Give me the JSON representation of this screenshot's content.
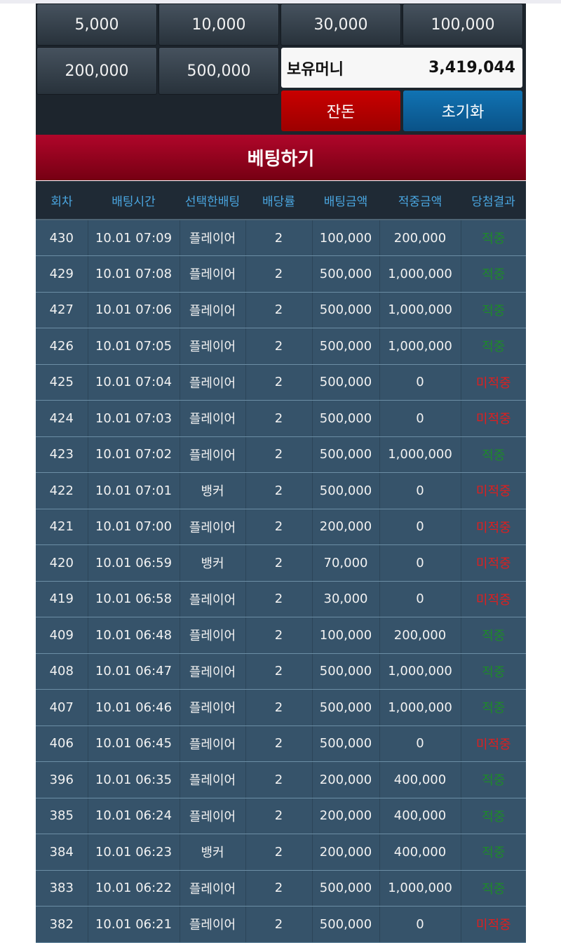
{
  "chips": [
    "5,000",
    "10,000",
    "30,000",
    "100,000",
    "200,000",
    "500,000"
  ],
  "money": {
    "label": "보유머니",
    "value": "3,419,044"
  },
  "buttons": {
    "change": "잔돈",
    "reset": "초기화",
    "bet": "베팅하기"
  },
  "colors": {
    "win": "#1e8a2a",
    "lose": "#e01e1e",
    "header": "#4aa6e0"
  },
  "table": {
    "headers": [
      "회차",
      "배팅시간",
      "선택한배팅",
      "배당률",
      "배팅금액",
      "적중금액",
      "당첨결과"
    ],
    "rows": [
      [
        "430",
        "10.01 07:09",
        "플레이어",
        "2",
        "100,000",
        "200,000",
        "적중"
      ],
      [
        "429",
        "10.01 07:08",
        "플레이어",
        "2",
        "500,000",
        "1,000,000",
        "적중"
      ],
      [
        "427",
        "10.01 07:06",
        "플레이어",
        "2",
        "500,000",
        "1,000,000",
        "적중"
      ],
      [
        "426",
        "10.01 07:05",
        "플레이어",
        "2",
        "500,000",
        "1,000,000",
        "적중"
      ],
      [
        "425",
        "10.01 07:04",
        "플레이어",
        "2",
        "500,000",
        "0",
        "미적중"
      ],
      [
        "424",
        "10.01 07:03",
        "플레이어",
        "2",
        "500,000",
        "0",
        "미적중"
      ],
      [
        "423",
        "10.01 07:02",
        "플레이어",
        "2",
        "500,000",
        "1,000,000",
        "적중"
      ],
      [
        "422",
        "10.01 07:01",
        "뱅커",
        "2",
        "500,000",
        "0",
        "미적중"
      ],
      [
        "421",
        "10.01 07:00",
        "플레이어",
        "2",
        "200,000",
        "0",
        "미적중"
      ],
      [
        "420",
        "10.01 06:59",
        "뱅커",
        "2",
        "70,000",
        "0",
        "미적중"
      ],
      [
        "419",
        "10.01 06:58",
        "플레이어",
        "2",
        "30,000",
        "0",
        "미적중"
      ],
      [
        "409",
        "10.01 06:48",
        "플레이어",
        "2",
        "100,000",
        "200,000",
        "적중"
      ],
      [
        "408",
        "10.01 06:47",
        "플레이어",
        "2",
        "500,000",
        "1,000,000",
        "적중"
      ],
      [
        "407",
        "10.01 06:46",
        "플레이어",
        "2",
        "500,000",
        "1,000,000",
        "적중"
      ],
      [
        "406",
        "10.01 06:45",
        "플레이어",
        "2",
        "500,000",
        "0",
        "미적중"
      ],
      [
        "396",
        "10.01 06:35",
        "플레이어",
        "2",
        "200,000",
        "400,000",
        "적중"
      ],
      [
        "385",
        "10.01 06:24",
        "플레이어",
        "2",
        "200,000",
        "400,000",
        "적중"
      ],
      [
        "384",
        "10.01 06:23",
        "뱅커",
        "2",
        "200,000",
        "400,000",
        "적중"
      ],
      [
        "383",
        "10.01 06:22",
        "플레이어",
        "2",
        "500,000",
        "1,000,000",
        "적중"
      ],
      [
        "382",
        "10.01 06:21",
        "플레이어",
        "2",
        "500,000",
        "0",
        "미적중"
      ]
    ]
  }
}
